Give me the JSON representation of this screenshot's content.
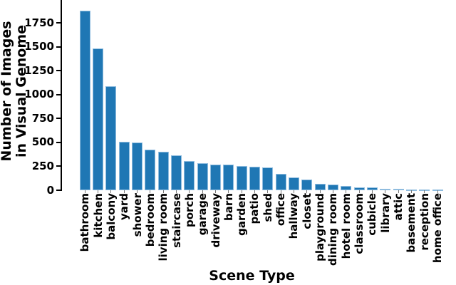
{
  "chart_data": {
    "type": "bar",
    "title": "",
    "xlabel": "Scene Type",
    "ylabel": "Number of Images in Visual Genome",
    "ylabel_lines": [
      "Number of Images",
      "in Visual Genome"
    ],
    "categories": [
      "bathroom",
      "kitchen",
      "balcony",
      "yard",
      "shower",
      "bedroom",
      "living room",
      "staircase",
      "porch",
      "garage",
      "driveway",
      "barn",
      "garden",
      "patio",
      "shed",
      "office",
      "hallway",
      "closet",
      "playground",
      "dining room",
      "hotel room",
      "classroom",
      "cubicle",
      "library",
      "attic",
      "basement",
      "reception",
      "home office"
    ],
    "values": [
      1880,
      1480,
      1090,
      510,
      500,
      425,
      400,
      365,
      305,
      285,
      270,
      265,
      255,
      245,
      235,
      170,
      135,
      115,
      70,
      60,
      48,
      32,
      28,
      18,
      12,
      10,
      8,
      8
    ],
    "yticks": [
      0,
      250,
      500,
      750,
      1000,
      1250,
      1500,
      1750
    ],
    "ylim": [
      0,
      1990
    ],
    "grid": false,
    "legend": null,
    "bar_color": "#1f77b4",
    "bar_edge_color": "#8fbcdf",
    "axis_color": "#000000"
  }
}
